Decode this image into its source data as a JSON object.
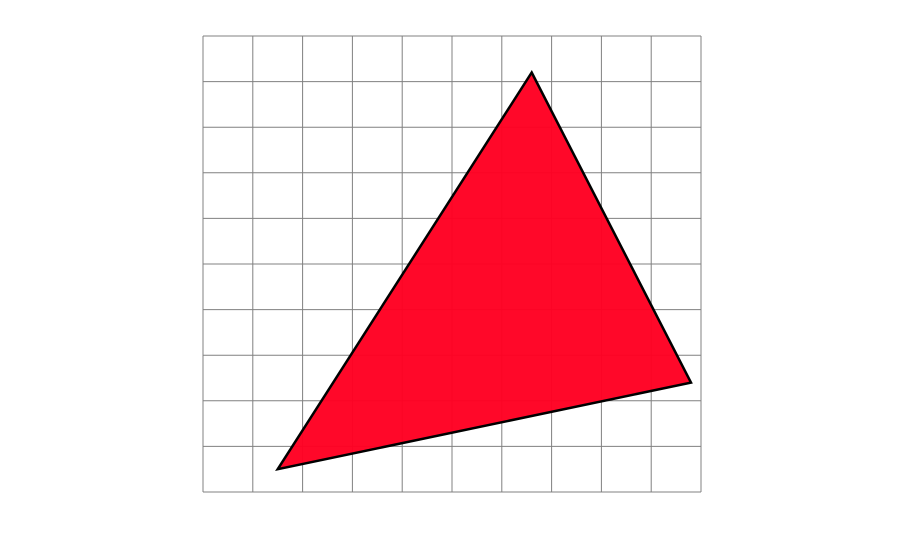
{
  "grid": {
    "columns": 10,
    "rows": 10,
    "line_color": "#808080",
    "background": "#ffffff"
  },
  "triangle": {
    "vertices": [
      {
        "x": 6.6,
        "y": 9.2
      },
      {
        "x": 9.8,
        "y": 2.4
      },
      {
        "x": 1.5,
        "y": 0.5
      }
    ],
    "fill": "#ff0022",
    "stroke": "#000000"
  }
}
